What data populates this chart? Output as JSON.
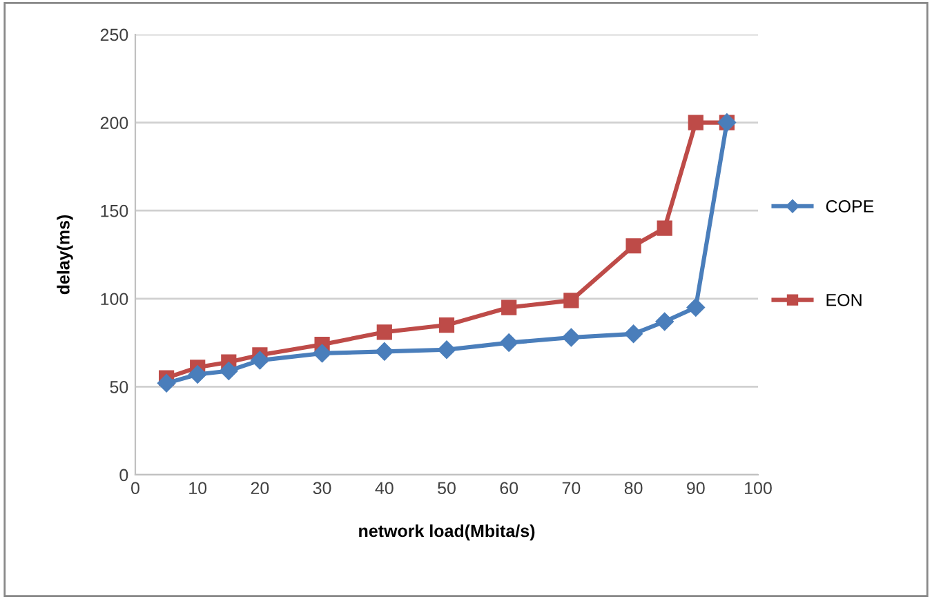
{
  "chart_data": {
    "type": "line",
    "xlabel": "network load(Mbita/s)",
    "ylabel": "delay(ms)",
    "x": [
      5,
      10,
      15,
      20,
      30,
      40,
      50,
      60,
      70,
      80,
      85,
      90,
      95
    ],
    "series": [
      {
        "name": "COPE",
        "color": "#4a7ebb",
        "marker": "diamond",
        "values": [
          52,
          57,
          59,
          65,
          69,
          70,
          71,
          75,
          78,
          80,
          87,
          95,
          200
        ]
      },
      {
        "name": "EON",
        "color": "#be4b48",
        "marker": "square",
        "values": [
          55,
          61,
          64,
          68,
          74,
          81,
          85,
          95,
          99,
          130,
          140,
          200,
          200
        ]
      }
    ],
    "xlim": [
      0,
      100
    ],
    "xticks": [
      0,
      10,
      20,
      30,
      40,
      50,
      60,
      70,
      80,
      90,
      100
    ],
    "ylim": [
      0,
      250
    ],
    "yticks": [
      0,
      50,
      100,
      150,
      200,
      250
    ],
    "grid": "y",
    "legend": "right",
    "line_style": "solid"
  }
}
